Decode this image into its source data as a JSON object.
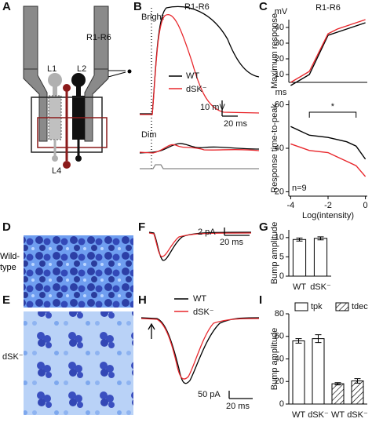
{
  "panel_labels": [
    "A",
    "B",
    "C",
    "D",
    "E",
    "F",
    "G",
    "H",
    "I"
  ],
  "panel_a": {
    "region": "R1-R6",
    "cells": [
      "L1",
      "L2",
      "L4"
    ]
  },
  "panel_b": {
    "title": "R1-R6",
    "conditions": [
      "Bright",
      "Dim"
    ],
    "legend": [
      "WT",
      "dSK⁻"
    ],
    "scale_y": "10 mV",
    "scale_x": "20 ms"
  },
  "panel_d": {
    "label": "Wild-type"
  },
  "panel_e": {
    "label": "dSK⁻"
  },
  "panel_f": {
    "scale_y": "2 pA",
    "scale_x": "20 ms"
  },
  "panel_h": {
    "legend": [
      "WT",
      "dSK⁻"
    ],
    "scale_y": "50 pA",
    "scale_x": "20 ms"
  },
  "chart_data": [
    {
      "type": "line",
      "title": "R1-R6",
      "y_label": "Maximum response",
      "y_unit": "mV",
      "x": [
        -4,
        -3,
        -2,
        -1.5,
        -1,
        -0.5,
        0
      ],
      "xlim": [
        -4.1,
        0.1
      ],
      "ylim": [
        5,
        45
      ],
      "yticks": [
        10,
        20,
        30,
        40
      ],
      "series": [
        {
          "name": "WT",
          "color": "#000000",
          "values": [
            3,
            10,
            35,
            37,
            39,
            41,
            43
          ]
        },
        {
          "name": "dSK⁻",
          "color": "#e8262b",
          "values": [
            5,
            12,
            36,
            39,
            41,
            43,
            45
          ]
        }
      ]
    },
    {
      "type": "line",
      "y_label": "Response time-to-peak",
      "y_unit": "ms",
      "x_label": "Log(intensity)",
      "x": [
        -4,
        -3,
        -2,
        -1.5,
        -1,
        -0.5,
        0
      ],
      "xlim": [
        -4.1,
        0.1
      ],
      "ylim": [
        18,
        62
      ],
      "yticks": [
        20,
        40,
        60
      ],
      "xticks": [
        -4,
        -2,
        0
      ],
      "annotations": [
        "*",
        "n=9"
      ],
      "series": [
        {
          "name": "WT",
          "color": "#000000",
          "values": [
            50,
            46,
            45,
            44,
            43,
            41,
            35
          ]
        },
        {
          "name": "dSK⁻",
          "color": "#e8262b",
          "values": [
            42,
            39,
            38,
            36,
            34,
            32,
            27
          ]
        }
      ]
    },
    {
      "type": "bar",
      "y_label": "Bump amplitude",
      "categories": [
        "WT",
        "dSK⁻"
      ],
      "ylim": [
        0,
        12
      ],
      "yticks": [
        0,
        5,
        10
      ],
      "series": [
        {
          "name": "amplitude",
          "color": "#ffffff",
          "values": [
            9.5,
            9.8
          ],
          "errors": [
            0.4,
            0.4
          ]
        }
      ]
    },
    {
      "type": "bar",
      "y_label": "Bump amplitude",
      "categories": [
        "WT",
        "dSK⁻",
        "WT",
        "dSK⁻"
      ],
      "ylim": [
        0,
        80
      ],
      "yticks": [
        0,
        20,
        40,
        60,
        80
      ],
      "series": [
        {
          "name": "tpk",
          "color": "#ffffff",
          "hatch": false,
          "values": [
            56,
            58,
            null,
            null
          ],
          "errors": [
            2,
            3.5,
            null,
            null
          ]
        },
        {
          "name": "tdec",
          "color": "#ffffff",
          "hatch": true,
          "values": [
            null,
            null,
            18,
            20.5
          ],
          "errors": [
            null,
            null,
            1,
            2
          ]
        }
      ]
    }
  ]
}
